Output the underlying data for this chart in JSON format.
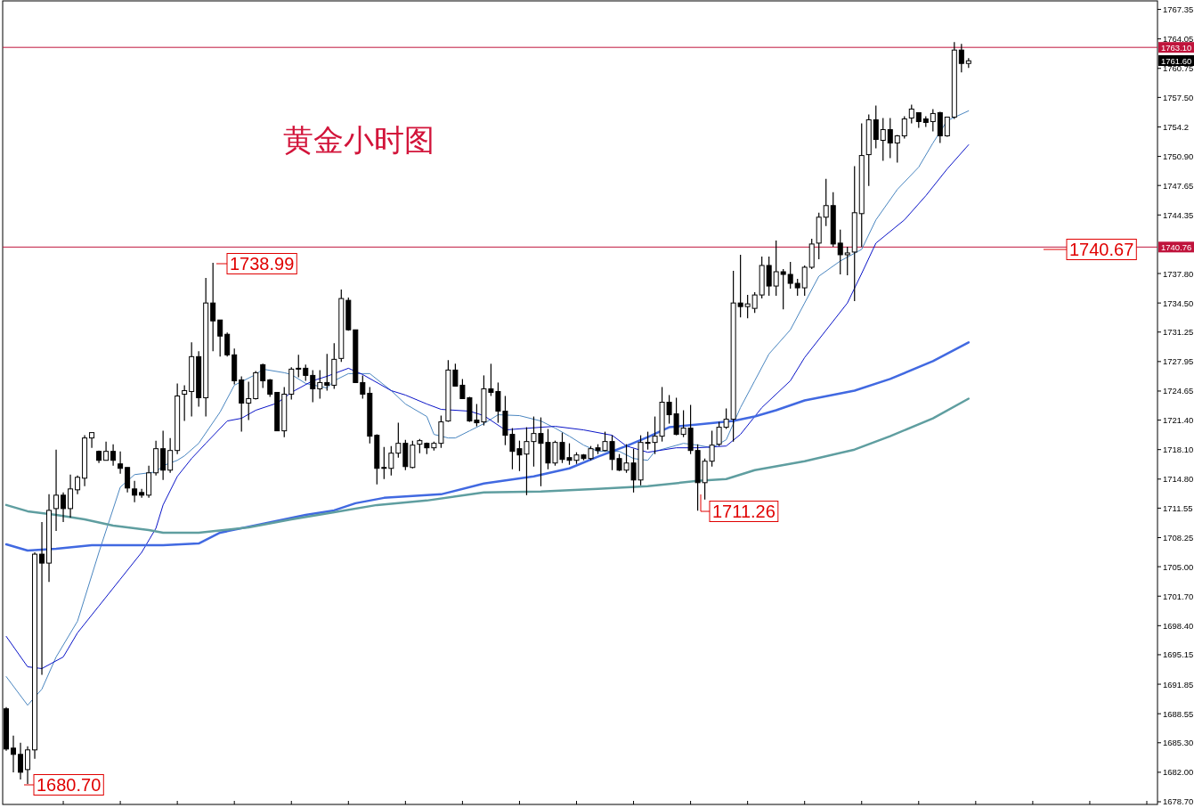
{
  "chart_data": {
    "type": "candlestick",
    "title": "黄金小时图",
    "tick_labels": "y",
    "categories": [
      null,
      null,
      null,
      null,
      null,
      null,
      null,
      null,
      null,
      null,
      null,
      null,
      null,
      null,
      null,
      null,
      null,
      null,
      null,
      null,
      null,
      null,
      null,
      null,
      null,
      null,
      null,
      null,
      null,
      null,
      null,
      null,
      null,
      null,
      null,
      null,
      null,
      null,
      null,
      null,
      null,
      null,
      null,
      null,
      null,
      null,
      null,
      null,
      null,
      null,
      null,
      null,
      null,
      null,
      null,
      null,
      null,
      null,
      null,
      null,
      null,
      null,
      null,
      null,
      null,
      null,
      null,
      null,
      null,
      null,
      null,
      null,
      null,
      null,
      null,
      null,
      null,
      null,
      null,
      null,
      null,
      null,
      null,
      null,
      null,
      null,
      null,
      null,
      null,
      null,
      null,
      null,
      null,
      null,
      null,
      null,
      null,
      null,
      null,
      null,
      null,
      null,
      null,
      null,
      null,
      null,
      null,
      null,
      null,
      null,
      null,
      null,
      null,
      null,
      null,
      null,
      null,
      null,
      null,
      null,
      null,
      null,
      null,
      null,
      null,
      null,
      null,
      null,
      null,
      null,
      null,
      null,
      null,
      null,
      null,
      null,
      null,
      null,
      null,
      null,
      null,
      null,
      null,
      null,
      null,
      null,
      null,
      null,
      null,
      null,
      null,
      null,
      null,
      null,
      null,
      null,
      null,
      null,
      null,
      null,
      null,
      null
    ],
    "ohlc": [
      [
        1689.1,
        1689.3,
        1684.4,
        1684.6
      ],
      [
        1684.7,
        1686.1,
        1682.0,
        1684.0
      ],
      [
        1684.0,
        1685.3,
        1681.2,
        1682.0
      ],
      [
        1682.3,
        1684.9,
        1680.7,
        1684.5
      ],
      [
        1684.5,
        1706.6,
        1683.5,
        1706.4
      ],
      [
        1706.4,
        1710.0,
        1692.9,
        1705.4
      ],
      [
        1705.4,
        1713.1,
        1703.3,
        1711.3
      ],
      [
        1711.5,
        1718.1,
        1709.0,
        1713.0
      ],
      [
        1713.0,
        1713.3,
        1710.0,
        1711.5
      ],
      [
        1711.5,
        1715.3,
        1710.5,
        1713.7
      ],
      [
        1713.6,
        1715.2,
        1713.1,
        1715.0
      ],
      [
        1714.9,
        1719.7,
        1714.0,
        1719.4
      ],
      [
        1719.4,
        1720.0,
        1718.3,
        1720.0
      ],
      [
        1717.9,
        1718.0,
        1716.6,
        1716.9
      ],
      [
        1716.9,
        1719.0,
        1716.9,
        1717.9
      ],
      [
        1717.9,
        1718.7,
        1716.3,
        1716.9
      ],
      [
        1716.5,
        1717.9,
        1715.4,
        1716.0
      ],
      [
        1716.1,
        1716.1,
        1713.3,
        1713.8
      ],
      [
        1713.7,
        1714.6,
        1712.2,
        1713.0
      ],
      [
        1713.3,
        1713.7,
        1712.7,
        1713.0
      ],
      [
        1713.0,
        1716.3,
        1712.7,
        1715.5
      ],
      [
        1715.5,
        1719.1,
        1715.2,
        1718.2
      ],
      [
        1718.2,
        1720.2,
        1714.7,
        1715.8
      ],
      [
        1715.8,
        1719.4,
        1715.5,
        1718.0
      ],
      [
        1718.0,
        1725.5,
        1717.6,
        1724.1
      ],
      [
        1724.3,
        1725.3,
        1721.3,
        1724.7
      ],
      [
        1724.6,
        1730.1,
        1721.8,
        1728.5
      ],
      [
        1728.5,
        1729.1,
        1722.9,
        1723.9
      ],
      [
        1723.9,
        1737.3,
        1721.8,
        1734.5
      ],
      [
        1734.5,
        1738.99,
        1729.1,
        1732.5
      ],
      [
        1732.6,
        1732.6,
        1728.5,
        1730.8
      ],
      [
        1731.0,
        1731.2,
        1728.5,
        1728.7
      ],
      [
        1728.7,
        1729.4,
        1725.4,
        1725.8
      ],
      [
        1725.9,
        1726.3,
        1720.1,
        1723.3
      ],
      [
        1723.3,
        1725.7,
        1721.4,
        1723.8
      ],
      [
        1723.8,
        1726.9,
        1723.7,
        1726.7
      ],
      [
        1727.6,
        1727.7,
        1725.0,
        1725.8
      ],
      [
        1725.9,
        1726.0,
        1724.0,
        1724.3
      ],
      [
        1724.5,
        1724.5,
        1720.2,
        1720.2
      ],
      [
        1720.2,
        1725.1,
        1719.5,
        1724.3
      ],
      [
        1724.3,
        1727.3,
        1723.7,
        1727.1
      ],
      [
        1727.2,
        1728.7,
        1726.2,
        1727.1
      ],
      [
        1727.2,
        1727.6,
        1725.8,
        1726.4
      ],
      [
        1726.4,
        1727.0,
        1723.4,
        1724.9
      ],
      [
        1724.9,
        1727.0,
        1723.8,
        1725.6
      ],
      [
        1725.6,
        1728.8,
        1724.7,
        1725.3
      ],
      [
        1725.3,
        1730.0,
        1724.9,
        1728.2
      ],
      [
        1728.3,
        1736.0,
        1727.9,
        1735.0
      ],
      [
        1734.8,
        1735.1,
        1731.4,
        1731.5
      ],
      [
        1731.5,
        1731.5,
        1725.6,
        1725.6
      ],
      [
        1725.6,
        1726.4,
        1723.8,
        1724.3
      ],
      [
        1724.4,
        1725.1,
        1718.8,
        1719.6
      ],
      [
        1719.7,
        1719.8,
        1714.2,
        1716.0
      ],
      [
        1716.1,
        1718.4,
        1714.8,
        1716.0
      ],
      [
        1716.0,
        1718.5,
        1715.2,
        1717.7
      ],
      [
        1717.7,
        1721.1,
        1717.2,
        1718.8
      ],
      [
        1718.8,
        1719.2,
        1715.8,
        1716.2
      ],
      [
        1716.1,
        1719.1,
        1716.0,
        1718.6
      ],
      [
        1718.7,
        1719.3,
        1717.7,
        1719.1
      ],
      [
        1718.8,
        1718.9,
        1717.6,
        1718.3
      ],
      [
        1718.3,
        1719.0,
        1718.0,
        1718.8
      ],
      [
        1718.8,
        1721.9,
        1718.3,
        1721.2
      ],
      [
        1721.3,
        1728.1,
        1721.2,
        1727.0
      ],
      [
        1727.0,
        1727.7,
        1725.2,
        1725.2
      ],
      [
        1725.3,
        1726.0,
        1723.8,
        1723.8
      ],
      [
        1723.9,
        1724.0,
        1721.2,
        1721.3
      ],
      [
        1721.4,
        1723.2,
        1720.7,
        1721.1
      ],
      [
        1721.2,
        1726.4,
        1720.8,
        1724.9
      ],
      [
        1724.9,
        1727.7,
        1724.1,
        1724.5
      ],
      [
        1724.6,
        1725.6,
        1721.1,
        1722.4
      ],
      [
        1722.4,
        1724.1,
        1718.6,
        1719.7
      ],
      [
        1719.8,
        1720.5,
        1715.9,
        1717.9
      ],
      [
        1718.2,
        1719.1,
        1715.7,
        1717.5
      ],
      [
        1717.6,
        1720.6,
        1713.0,
        1719.0
      ],
      [
        1719.0,
        1721.8,
        1716.2,
        1719.9
      ],
      [
        1719.9,
        1721.7,
        1714.0,
        1718.8
      ],
      [
        1718.9,
        1720.4,
        1715.9,
        1716.6
      ],
      [
        1716.6,
        1719.1,
        1716.3,
        1718.9
      ],
      [
        1718.9,
        1720.0,
        1716.6,
        1717.0
      ],
      [
        1717.2,
        1718.8,
        1716.4,
        1716.9
      ],
      [
        1716.9,
        1717.8,
        1716.5,
        1717.5
      ],
      [
        1717.5,
        1717.6,
        1716.9,
        1717.1
      ],
      [
        1717.1,
        1718.5,
        1716.9,
        1718.2
      ],
      [
        1718.3,
        1718.7,
        1717.6,
        1718.0
      ],
      [
        1718.0,
        1720.1,
        1717.9,
        1719.0
      ],
      [
        1719.0,
        1719.7,
        1715.8,
        1717.0
      ],
      [
        1717.1,
        1717.6,
        1715.7,
        1715.8
      ],
      [
        1715.8,
        1718.7,
        1715.5,
        1716.6
      ],
      [
        1716.6,
        1718.2,
        1713.3,
        1714.7
      ],
      [
        1714.7,
        1719.7,
        1714.1,
        1718.9
      ],
      [
        1718.9,
        1720.1,
        1718.1,
        1718.8
      ],
      [
        1718.9,
        1721.8,
        1717.6,
        1719.6
      ],
      [
        1719.6,
        1725.1,
        1719.0,
        1723.4
      ],
      [
        1723.4,
        1724.2,
        1721.0,
        1722.0
      ],
      [
        1722.1,
        1723.9,
        1719.7,
        1719.8
      ],
      [
        1719.8,
        1722.5,
        1719.5,
        1720.5
      ],
      [
        1720.5,
        1723.1,
        1717.6,
        1718.0
      ],
      [
        1718.0,
        1718.7,
        1711.26,
        1714.4
      ],
      [
        1714.4,
        1717.1,
        1712.5,
        1716.8
      ],
      [
        1716.8,
        1720.2,
        1716.2,
        1718.6
      ],
      [
        1718.7,
        1721.2,
        1718.5,
        1720.6
      ],
      [
        1720.6,
        1722.7,
        1720.4,
        1721.5
      ],
      [
        1721.5,
        1738.1,
        1719.0,
        1734.5
      ],
      [
        1734.5,
        1739.9,
        1732.9,
        1734.1
      ],
      [
        1734.1,
        1735.4,
        1732.8,
        1734.4
      ],
      [
        1733.9,
        1735.7,
        1733.4,
        1735.4
      ],
      [
        1735.4,
        1739.7,
        1735.0,
        1738.7
      ],
      [
        1738.7,
        1739.7,
        1735.3,
        1736.4
      ],
      [
        1736.4,
        1741.5,
        1735.3,
        1738.0
      ],
      [
        1738.0,
        1738.3,
        1733.8,
        1737.7
      ],
      [
        1737.7,
        1739.1,
        1736.1,
        1736.7
      ],
      [
        1736.7,
        1737.2,
        1735.3,
        1736.2
      ],
      [
        1736.2,
        1738.7,
        1735.3,
        1738.5
      ],
      [
        1738.5,
        1741.7,
        1738.3,
        1741.1
      ],
      [
        1741.2,
        1744.6,
        1739.4,
        1744.1
      ],
      [
        1744.1,
        1748.4,
        1743.1,
        1745.4
      ],
      [
        1745.4,
        1746.9,
        1740.8,
        1741.1
      ],
      [
        1741.2,
        1742.7,
        1737.7,
        1739.9
      ],
      [
        1739.9,
        1740.8,
        1737.6,
        1740.1
      ],
      [
        1740.2,
        1749.8,
        1734.7,
        1744.6
      ],
      [
        1744.5,
        1754.6,
        1740.8,
        1751.0
      ],
      [
        1751.1,
        1755.6,
        1747.6,
        1755.0
      ],
      [
        1755.0,
        1756.6,
        1751.8,
        1752.8
      ],
      [
        1752.7,
        1755.2,
        1750.4,
        1753.9
      ],
      [
        1753.9,
        1755.2,
        1750.7,
        1752.4
      ],
      [
        1752.4,
        1753.3,
        1750.2,
        1753.2
      ],
      [
        1753.2,
        1755.4,
        1752.9,
        1755.1
      ],
      [
        1755.2,
        1756.7,
        1754.6,
        1756.2
      ],
      [
        1755.8,
        1755.8,
        1754.1,
        1754.8
      ],
      [
        1755.1,
        1755.4,
        1754.2,
        1754.7
      ],
      [
        1754.8,
        1756.2,
        1753.7,
        1755.7
      ],
      [
        1755.8,
        1755.9,
        1752.4,
        1753.2
      ],
      [
        1753.2,
        1755.3,
        1753.1,
        1755.3
      ],
      [
        1755.3,
        1763.7,
        1755.1,
        1762.8
      ],
      [
        1762.8,
        1763.5,
        1760.3,
        1761.3
      ],
      [
        1761.3,
        1761.9,
        1760.8,
        1761.6
      ],
      null,
      null,
      null,
      null,
      null,
      null,
      null,
      null,
      null,
      null,
      null,
      null,
      null,
      null,
      null,
      null,
      null,
      null,
      null,
      null,
      null,
      null,
      null,
      null,
      null,
      null
    ],
    "series": [
      {
        "type": "line",
        "color": "#4a86c0",
        "values": [
          1692.7,
          null,
          null,
          1689.5,
          null,
          1691.3,
          null,
          1694.9,
          null,
          null,
          1698.9,
          null,
          null,
          1706.6,
          null,
          null,
          1713.9,
          null,
          1715.3,
          null,
          null,
          1715.6,
          1716.3,
          null,
          1716.9,
          1717.4,
          null,
          1718.8,
          null,
          null,
          1722.3,
          null,
          1725.3,
          null,
          null,
          1726.5,
          1727.1,
          null,
          null,
          1726.7,
          1726.5,
          null,
          1725.5,
          null,
          null,
          1725.0,
          1725.8,
          null,
          1726.6,
          null,
          null,
          1726.6,
          null,
          null,
          1724.7,
          null,
          1723.2,
          null,
          null,
          1721.8,
          1719.8,
          null,
          1719.4,
          1719.4,
          null,
          1720.2,
          null,
          1721.0,
          null,
          1722.0,
          null,
          null,
          1721.9,
          null,
          null,
          1721.3,
          null,
          1720.5,
          null,
          1719.6,
          null,
          1718.6,
          null,
          1717.9,
          null,
          null,
          1717.9,
          null,
          1717.1,
          null,
          1716.9,
          1717.9,
          null,
          null,
          null,
          1718.8,
          null,
          1718.6,
          null,
          1718.3,
          null,
          1719.2,
          null,
          1722.8,
          null,
          1725.8,
          null,
          1728.8,
          null,
          null,
          1731.5,
          null,
          1734.5,
          null,
          1737.5,
          null,
          null,
          1739.2,
          null,
          null,
          1740.5,
          null,
          1743.8,
          null,
          null,
          1747.2,
          null,
          null,
          1749.7,
          null,
          1752.4,
          null,
          1754.9,
          null,
          null,
          1756.0,
          null,
          null,
          null,
          null,
          null,
          null,
          null,
          null,
          null,
          null,
          null,
          null,
          null,
          null,
          null,
          null,
          null,
          null,
          null,
          null,
          null,
          null,
          null,
          null,
          null,
          null
        ]
      },
      {
        "type": "line",
        "color": "#0a14c8",
        "values": [
          1697.2,
          null,
          null,
          1693.8,
          null,
          1693.6,
          null,
          null,
          1694.9,
          null,
          1697.6,
          null,
          null,
          1700.6,
          null,
          null,
          1703.6,
          null,
          null,
          1706.6,
          null,
          1709.3,
          1711.9,
          null,
          1715.1,
          null,
          1717.1,
          null,
          1718.8,
          null,
          null,
          1721.3,
          null,
          1721.6,
          null,
          1722.5,
          null,
          null,
          1723.3,
          null,
          1724.5,
          null,
          null,
          1725.8,
          null,
          1726.3,
          null,
          null,
          1727.2,
          null,
          1726.5,
          null,
          null,
          null,
          1724.7,
          null,
          1724.2,
          null,
          null,
          1723.2,
          null,
          1722.6,
          null,
          null,
          null,
          1722.4,
          null,
          1721.9,
          null,
          null,
          1720.3,
          null,
          null,
          null,
          null,
          1720.6,
          null,
          1720.7,
          null,
          null,
          null,
          1720.3,
          null,
          null,
          null,
          1719.7,
          null,
          1718.5,
          null,
          null,
          1717.8,
          null,
          null,
          null,
          1718.3,
          null,
          null,
          1718.3,
          null,
          null,
          null,
          1718.5,
          null,
          1719.8,
          null,
          null,
          1722.8,
          null,
          null,
          null,
          1725.8,
          null,
          1728.4,
          null,
          null,
          null,
          null,
          null,
          1734.5,
          null,
          1737.8,
          null,
          1741.2,
          null,
          null,
          null,
          1743.8,
          null,
          null,
          1746.5,
          null,
          null,
          1749.5,
          null,
          null,
          1752.2,
          null,
          null,
          null,
          null,
          null,
          null,
          null,
          null,
          null,
          null,
          null,
          null,
          null,
          null,
          null,
          null,
          null,
          null,
          null,
          null,
          null,
          null,
          null,
          null,
          null,
          null
        ]
      },
      {
        "type": "line",
        "color": "#4169e1",
        "values": [
          1707.5,
          null,
          null,
          1706.8,
          null,
          null,
          null,
          1707.0,
          null,
          null,
          null,
          null,
          1707.4,
          null,
          null,
          null,
          null,
          null,
          null,
          null,
          null,
          null,
          1707.4,
          null,
          null,
          null,
          null,
          1707.6,
          null,
          null,
          1708.8,
          null,
          null,
          null,
          null,
          null,
          1709.8,
          null,
          null,
          null,
          null,
          null,
          1710.8,
          null,
          null,
          null,
          1711.3,
          null,
          null,
          1712.1,
          null,
          null,
          null,
          1712.7,
          null,
          null,
          null,
          null,
          null,
          null,
          null,
          1713.1,
          null,
          null,
          null,
          null,
          null,
          1714.3,
          null,
          null,
          null,
          null,
          null,
          null,
          1715.1,
          null,
          null,
          null,
          null,
          1716.0,
          null,
          null,
          null,
          1717.3,
          null,
          null,
          null,
          1718.5,
          null,
          null,
          1719.5,
          null,
          null,
          1720.6,
          null,
          null,
          null,
          1720.9,
          null,
          null,
          null,
          null,
          1721.3,
          null,
          null,
          1721.8,
          null,
          null,
          1722.5,
          null,
          null,
          null,
          1723.6,
          null,
          null,
          null,
          null,
          null,
          null,
          1724.7,
          null,
          null,
          null,
          null,
          1726.0,
          null,
          null,
          null,
          null,
          null,
          1728.0,
          null,
          null,
          null,
          null,
          1730.1,
          null,
          null,
          null,
          null,
          null,
          null,
          null,
          null,
          null,
          null,
          null,
          null,
          null,
          null,
          null,
          null,
          null,
          null,
          null,
          null,
          null,
          null,
          null,
          null,
          null,
          null
        ]
      },
      {
        "type": "line",
        "color": "#5f9ea0",
        "values": [
          1711.9,
          null,
          null,
          1711.2,
          null,
          null,
          null,
          1710.8,
          null,
          null,
          null,
          1710.3,
          null,
          null,
          null,
          1709.6,
          null,
          null,
          null,
          null,
          1709.1,
          null,
          1708.8,
          null,
          null,
          null,
          null,
          1708.8,
          null,
          null,
          null,
          null,
          null,
          null,
          1709.4,
          null,
          null,
          null,
          null,
          null,
          1710.3,
          null,
          null,
          null,
          null,
          null,
          1711.1,
          null,
          null,
          null,
          null,
          null,
          1711.9,
          null,
          null,
          null,
          null,
          null,
          null,
          1712.4,
          null,
          null,
          null,
          null,
          null,
          null,
          null,
          1713.3,
          null,
          null,
          null,
          null,
          null,
          null,
          null,
          1713.4,
          null,
          null,
          null,
          null,
          null,
          null,
          null,
          1713.7,
          null,
          null,
          null,
          null,
          null,
          null,
          1714.0,
          null,
          null,
          null,
          null,
          null,
          null,
          1714.6,
          null,
          null,
          null,
          1714.8,
          null,
          null,
          null,
          1715.8,
          null,
          null,
          null,
          null,
          null,
          null,
          1716.8,
          null,
          null,
          null,
          null,
          null,
          null,
          1718.1,
          null,
          null,
          null,
          null,
          1719.6,
          null,
          null,
          null,
          null,
          null,
          1721.6,
          null,
          null,
          null,
          null,
          1723.8,
          null,
          null,
          null,
          null,
          null,
          null,
          null,
          null,
          null,
          null,
          null,
          null,
          null,
          null,
          null,
          null,
          null,
          null,
          null,
          null,
          null,
          null,
          null,
          null,
          null,
          null
        ]
      }
    ],
    "ylim": [
      1678.4,
      1768.4
    ],
    "yticks": [
      1767.35,
      1764.05,
      1760.75,
      {
        "value": 1757.5,
        "label": "1757.50"
      },
      1754.2,
      {
        "value": 1750.9,
        "label": "1750.90"
      },
      1747.65,
      1744.35,
      {
        "value": 1737.8,
        "label": "1737.80"
      },
      {
        "value": 1734.5,
        "label": "1734.50"
      },
      1731.25,
      1727.95,
      1724.65,
      {
        "value": 1721.4,
        "label": "1721.40"
      },
      {
        "value": 1718.1,
        "label": "1718.10"
      },
      {
        "value": 1714.8,
        "label": "1714.80"
      },
      1711.55,
      1708.25,
      {
        "value": 1705,
        "label": "1705.00"
      },
      {
        "value": 1701.7,
        "label": "1701.70"
      },
      {
        "value": 1698.4,
        "label": "1698.40"
      },
      1695.15,
      1691.85,
      1688.55,
      {
        "value": 1685.3,
        "label": "1685.30"
      },
      {
        "value": 1682,
        "label": "1682.00"
      },
      {
        "value": 1678.7,
        "label": "1678.70"
      }
    ],
    "ref_lines": [
      {
        "axis": "y",
        "value": 1763.1,
        "label": "1763.10",
        "color": "#c0143c"
      },
      {
        "axis": "y",
        "value": 1740.76,
        "label": "1740.76",
        "color": "#c0143c"
      }
    ],
    "annotations": [
      "1738.99",
      "1680.70",
      "1711.26",
      "1740.67",
      "1761.60"
    ]
  }
}
